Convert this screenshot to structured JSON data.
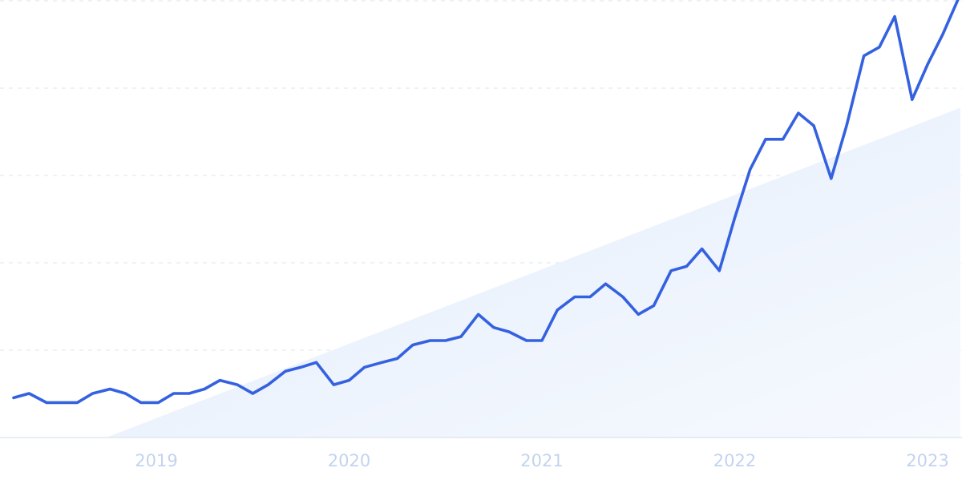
{
  "chart_data": {
    "type": "line",
    "title": "",
    "xlabel": "",
    "ylabel": "",
    "x_range": [
      2018.25,
      2023.17
    ],
    "ylim": [
      0,
      100
    ],
    "grid": true,
    "legend": "none",
    "x_ticks": [
      {
        "value": 2019,
        "label": "2019"
      },
      {
        "value": 2020,
        "label": "2020"
      },
      {
        "value": 2021,
        "label": "2021"
      },
      {
        "value": 2022,
        "label": "2022"
      },
      {
        "value": 2023,
        "label": "2023"
      }
    ],
    "y_grid": [
      0,
      20,
      40,
      60,
      80,
      100
    ],
    "series": [
      {
        "color": "#3461e0",
        "points": [
          [
            2018.26,
            9.1
          ],
          [
            2018.34,
            10.1
          ],
          [
            2018.43,
            8.0
          ],
          [
            2018.51,
            8.0
          ],
          [
            2018.59,
            8.0
          ],
          [
            2018.67,
            10.1
          ],
          [
            2018.76,
            11.1
          ],
          [
            2018.84,
            10.1
          ],
          [
            2018.92,
            8.0
          ],
          [
            2019.01,
            8.0
          ],
          [
            2019.09,
            10.1
          ],
          [
            2019.17,
            10.1
          ],
          [
            2019.25,
            11.1
          ],
          [
            2019.33,
            13.1
          ],
          [
            2019.42,
            12.1
          ],
          [
            2019.5,
            10.1
          ],
          [
            2019.58,
            12.1
          ],
          [
            2019.67,
            15.2
          ],
          [
            2019.75,
            16.1
          ],
          [
            2019.83,
            17.2
          ],
          [
            2019.92,
            12.1
          ],
          [
            2020.0,
            13.1
          ],
          [
            2020.08,
            16.1
          ],
          [
            2020.17,
            17.2
          ],
          [
            2020.25,
            18.1
          ],
          [
            2020.33,
            21.2
          ],
          [
            2020.42,
            22.2
          ],
          [
            2020.5,
            22.2
          ],
          [
            2020.58,
            23.1
          ],
          [
            2020.67,
            28.2
          ],
          [
            2020.75,
            25.2
          ],
          [
            2020.83,
            24.2
          ],
          [
            2020.92,
            22.2
          ],
          [
            2021.0,
            22.2
          ],
          [
            2021.08,
            29.2
          ],
          [
            2021.17,
            32.2
          ],
          [
            2021.25,
            32.2
          ],
          [
            2021.33,
            35.2
          ],
          [
            2021.42,
            32.2
          ],
          [
            2021.5,
            28.2
          ],
          [
            2021.58,
            30.2
          ],
          [
            2021.67,
            38.2
          ],
          [
            2021.75,
            39.2
          ],
          [
            2021.83,
            43.2
          ],
          [
            2021.92,
            38.2
          ],
          [
            2022.0,
            50.3
          ],
          [
            2022.08,
            61.4
          ],
          [
            2022.16,
            68.3
          ],
          [
            2022.25,
            68.3
          ],
          [
            2022.33,
            74.3
          ],
          [
            2022.41,
            71.4
          ],
          [
            2022.5,
            59.3
          ],
          [
            2022.58,
            71.4
          ],
          [
            2022.67,
            87.4
          ],
          [
            2022.75,
            89.4
          ],
          [
            2022.83,
            96.4
          ],
          [
            2022.92,
            77.4
          ],
          [
            2023.0,
            85.4
          ],
          [
            2023.08,
            92.4
          ],
          [
            2023.16,
            100.5
          ]
        ]
      }
    ],
    "trend_band": {
      "color": "#e6f0fc",
      "start": [
        2018.74,
        0
      ],
      "end": [
        2023.17,
        75.5
      ]
    }
  }
}
